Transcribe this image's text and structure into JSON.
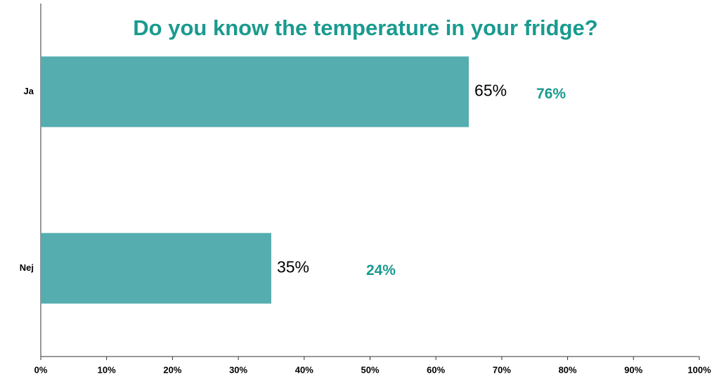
{
  "chart_data": {
    "type": "hbar",
    "title": "Do you know the temperature in your fridge?",
    "categories": [
      "Ja",
      "Nej"
    ],
    "values": [
      65,
      35
    ],
    "value_labels": [
      "65%",
      "35%"
    ],
    "color": "#55adb0",
    "annotations": [
      "76%",
      "24%"
    ],
    "annotation_color": "#1a9a8f",
    "xlim": [
      0,
      100
    ],
    "xticks": [
      {
        "value": 0,
        "label": "0%"
      },
      {
        "value": 10,
        "label": "10%"
      },
      {
        "value": 20,
        "label": "20%"
      },
      {
        "value": 30,
        "label": "30%"
      },
      {
        "value": 40,
        "label": "40%"
      },
      {
        "value": 50,
        "label": "50%"
      },
      {
        "value": 60,
        "label": "60%"
      },
      {
        "value": 70,
        "label": "70%"
      },
      {
        "value": 80,
        "label": "80%"
      },
      {
        "value": 90,
        "label": "90%"
      },
      {
        "value": 100,
        "label": "100%"
      }
    ],
    "grid": false
  }
}
